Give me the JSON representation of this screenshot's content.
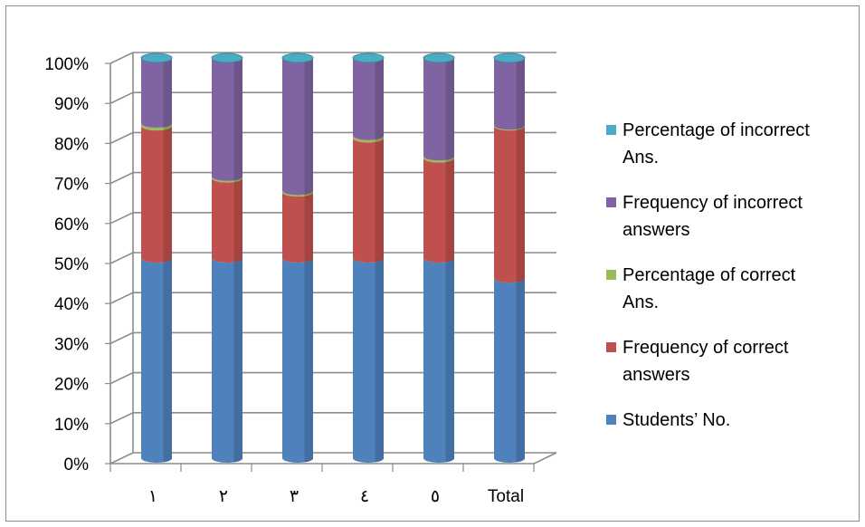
{
  "chart_data": {
    "type": "bar",
    "stacked": "percent",
    "three_d": true,
    "categories": [
      "١",
      "٢",
      "٣",
      "٤",
      "٥",
      "Total"
    ],
    "yticks": [
      "0%",
      "10%",
      "20%",
      "30%",
      "40%",
      "50%",
      "60%",
      "70%",
      "80%",
      "90%",
      "100%"
    ],
    "ylim": [
      0,
      100
    ],
    "grid": true,
    "legend_position": "right",
    "series": [
      {
        "name": "Students’ No.",
        "color": "#4f81bd",
        "values": [
          50,
          50,
          50,
          50,
          50,
          45
        ]
      },
      {
        "name": "Frequency of correct answers",
        "color": "#c0504d",
        "values": [
          33,
          20,
          16.5,
          30,
          25,
          38
        ]
      },
      {
        "name": "Percentage of correct Ans.",
        "color": "#9bbb59",
        "values": [
          0.7,
          0.4,
          0.35,
          0.6,
          0.5,
          0.2
        ]
      },
      {
        "name": "Frequency of incorrect answers",
        "color": "#8064a2",
        "values": [
          16.3,
          29.6,
          33.15,
          19.4,
          24.5,
          16.8
        ]
      },
      {
        "name": "Percentage of incorrect Ans.",
        "color": "#4bacc6",
        "values": [
          0.01,
          0.01,
          0.01,
          0.01,
          0.01,
          0.01
        ]
      }
    ],
    "legend": [
      {
        "lines": [
          "Percentage of incorrect",
          "Ans."
        ],
        "color": "#4bacc6"
      },
      {
        "lines": [
          "Frequency of incorrect",
          "answers"
        ],
        "color": "#8064a2"
      },
      {
        "lines": [
          "Percentage of correct",
          "Ans."
        ],
        "color": "#9bbb59"
      },
      {
        "lines": [
          "Frequency of correct",
          "answers"
        ],
        "color": "#c0504d"
      },
      {
        "lines": [
          "Students’ No."
        ],
        "color": "#4f81bd"
      }
    ]
  }
}
